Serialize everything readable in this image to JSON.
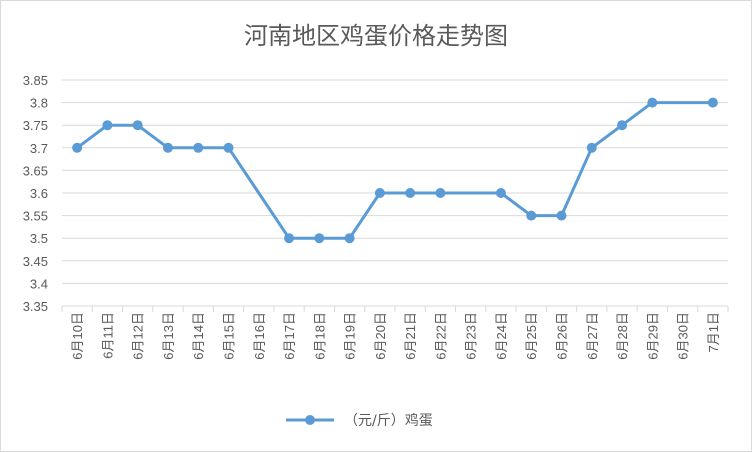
{
  "chart_data": {
    "type": "line",
    "title": "河南地区鸡蛋价格走势图",
    "xlabel": "",
    "ylabel": "",
    "categories": [
      "6月10日",
      "6月11日",
      "6月12日",
      "6月13日",
      "6月14日",
      "6月15日",
      "6月16日",
      "6月17日",
      "6月18日",
      "6月19日",
      "6月20日",
      "6月21日",
      "6月22日",
      "6月23日",
      "6月24日",
      "6月25日",
      "6月26日",
      "6月27日",
      "6月28日",
      "6月29日",
      "6月30日",
      "7月1日"
    ],
    "series": [
      {
        "name": "（元/斤）鸡蛋",
        "values": [
          3.7,
          3.75,
          3.75,
          3.7,
          3.7,
          3.7,
          null,
          3.5,
          3.5,
          3.5,
          3.6,
          3.6,
          3.6,
          null,
          3.6,
          3.55,
          3.55,
          3.7,
          3.75,
          3.8,
          null,
          3.8
        ],
        "color": "#5b9bd5"
      }
    ],
    "ylim": [
      3.35,
      3.85
    ],
    "yticks": [
      "3.35",
      "3.4",
      "3.45",
      "3.5",
      "3.55",
      "3.6",
      "3.65",
      "3.7",
      "3.75",
      "3.8",
      "3.85"
    ],
    "grid": true,
    "legend": "bottom"
  }
}
